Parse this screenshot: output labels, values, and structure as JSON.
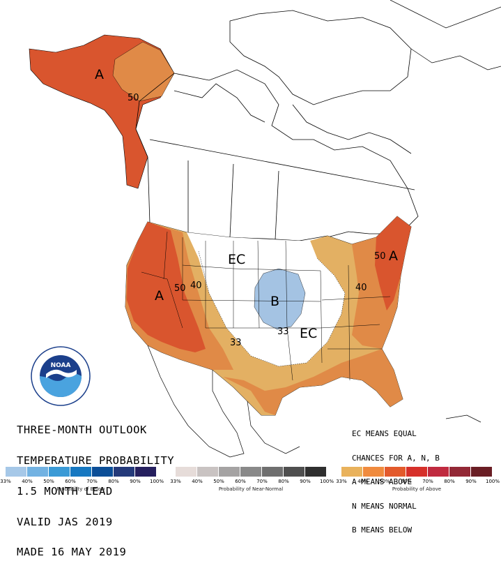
{
  "outlook": {
    "title_lines": [
      "THREE-MONTH OUTLOOK",
      "TEMPERATURE PROBABILITY",
      "1.5 MONTH LEAD",
      "VALID JAS 2019",
      "MADE 16 MAY 2019"
    ]
  },
  "key": {
    "lines": [
      "EC MEANS EQUAL",
      "CHANCES FOR A, N, B",
      "A MEANS ABOVE",
      "N MEANS NORMAL",
      "B MEANS BELOW"
    ]
  },
  "map_labels": {
    "alaska_A": "A",
    "alaska_50": "50",
    "west_A": "A",
    "west_50": "50",
    "west_40": "40",
    "center_EC": "EC",
    "center_B": "B",
    "center_33a": "33",
    "center_33b": "33",
    "southeast_EC": "EC",
    "east_A": "A",
    "east_50": "50",
    "east_40": "40"
  },
  "logo": {
    "text": "NOAA",
    "ring_text": "NATIONAL OCEANIC AND ATMOSPHERIC ADMINISTRATION · U.S. DEPARTMENT OF COMMERCE"
  },
  "colorbars": {
    "below": {
      "label": "Probability of Below",
      "ticks": [
        "33%",
        "40%",
        "50%",
        "60%",
        "70%",
        "80%",
        "90%",
        "100%"
      ],
      "colors": [
        "#a6c8e8",
        "#72b2e2",
        "#3a9ad6",
        "#1778c1",
        "#0b4e97",
        "#243a7a",
        "#251f5e"
      ]
    },
    "normal": {
      "label": "Probability of Near-Normal",
      "ticks": [
        "33%",
        "40%",
        "50%",
        "60%",
        "70%",
        "80%",
        "90%",
        "100%"
      ],
      "colors": [
        "#e6dcd9",
        "#c9c3c2",
        "#a5a3a3",
        "#898989",
        "#6f6f6f",
        "#4f4f4f",
        "#2f2f2f"
      ]
    },
    "above": {
      "label": "Probability of Above",
      "ticks": [
        "33%",
        "40%",
        "50%",
        "60%",
        "70%",
        "80%",
        "90%",
        "100%"
      ],
      "colors": [
        "#e9b25c",
        "#f08b3e",
        "#e35a2c",
        "#d6302a",
        "#c02a3f",
        "#932836",
        "#6a1e25"
      ]
    }
  },
  "colors": {
    "above_33_40": "#e3b063",
    "above_40_50": "#e08a47",
    "above_50_60": "#d9552e",
    "below_33_40": "#a4c3e3"
  }
}
